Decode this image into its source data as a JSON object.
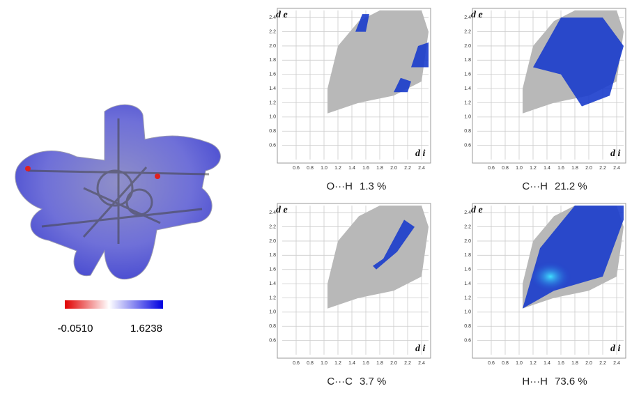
{
  "surface": {
    "scale_min": "-0.0510",
    "scale_max": "1.6238"
  },
  "axes": {
    "x_label": "d i",
    "y_label": "d e",
    "xlim": [
      0.4,
      2.5
    ],
    "ylim": [
      0.4,
      2.5
    ],
    "ticks": [
      0.6,
      0.8,
      {
        "value": 1,
        "label": "1.0"
      },
      1.2,
      1.4,
      1.6,
      1.8,
      {
        "value": 2,
        "label": "2.0"
      },
      2.2,
      2.4
    ]
  },
  "plots": [
    {
      "contact": "O···H",
      "share": "1.3 %"
    },
    {
      "contact": "C···H",
      "share": "21.2 %"
    },
    {
      "contact": "C···C",
      "share": "3.7 %"
    },
    {
      "contact": "H···H",
      "share": "73.6 %"
    }
  ]
}
